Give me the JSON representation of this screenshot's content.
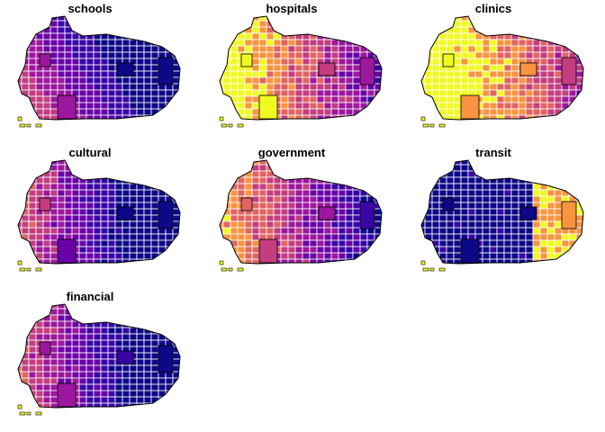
{
  "panels": [
    {
      "title": "schools"
    },
    {
      "title": "hospitals"
    },
    {
      "title": "clinics"
    },
    {
      "title": "cultural"
    },
    {
      "title": "government"
    },
    {
      "title": "transit"
    },
    {
      "title": "financial"
    }
  ],
  "palette": [
    "#0d0887",
    "#3a05a6",
    "#6a00a8",
    "#9c179e",
    "#c33d80",
    "#e16462",
    "#f8943f",
    "#f0f921"
  ]
}
